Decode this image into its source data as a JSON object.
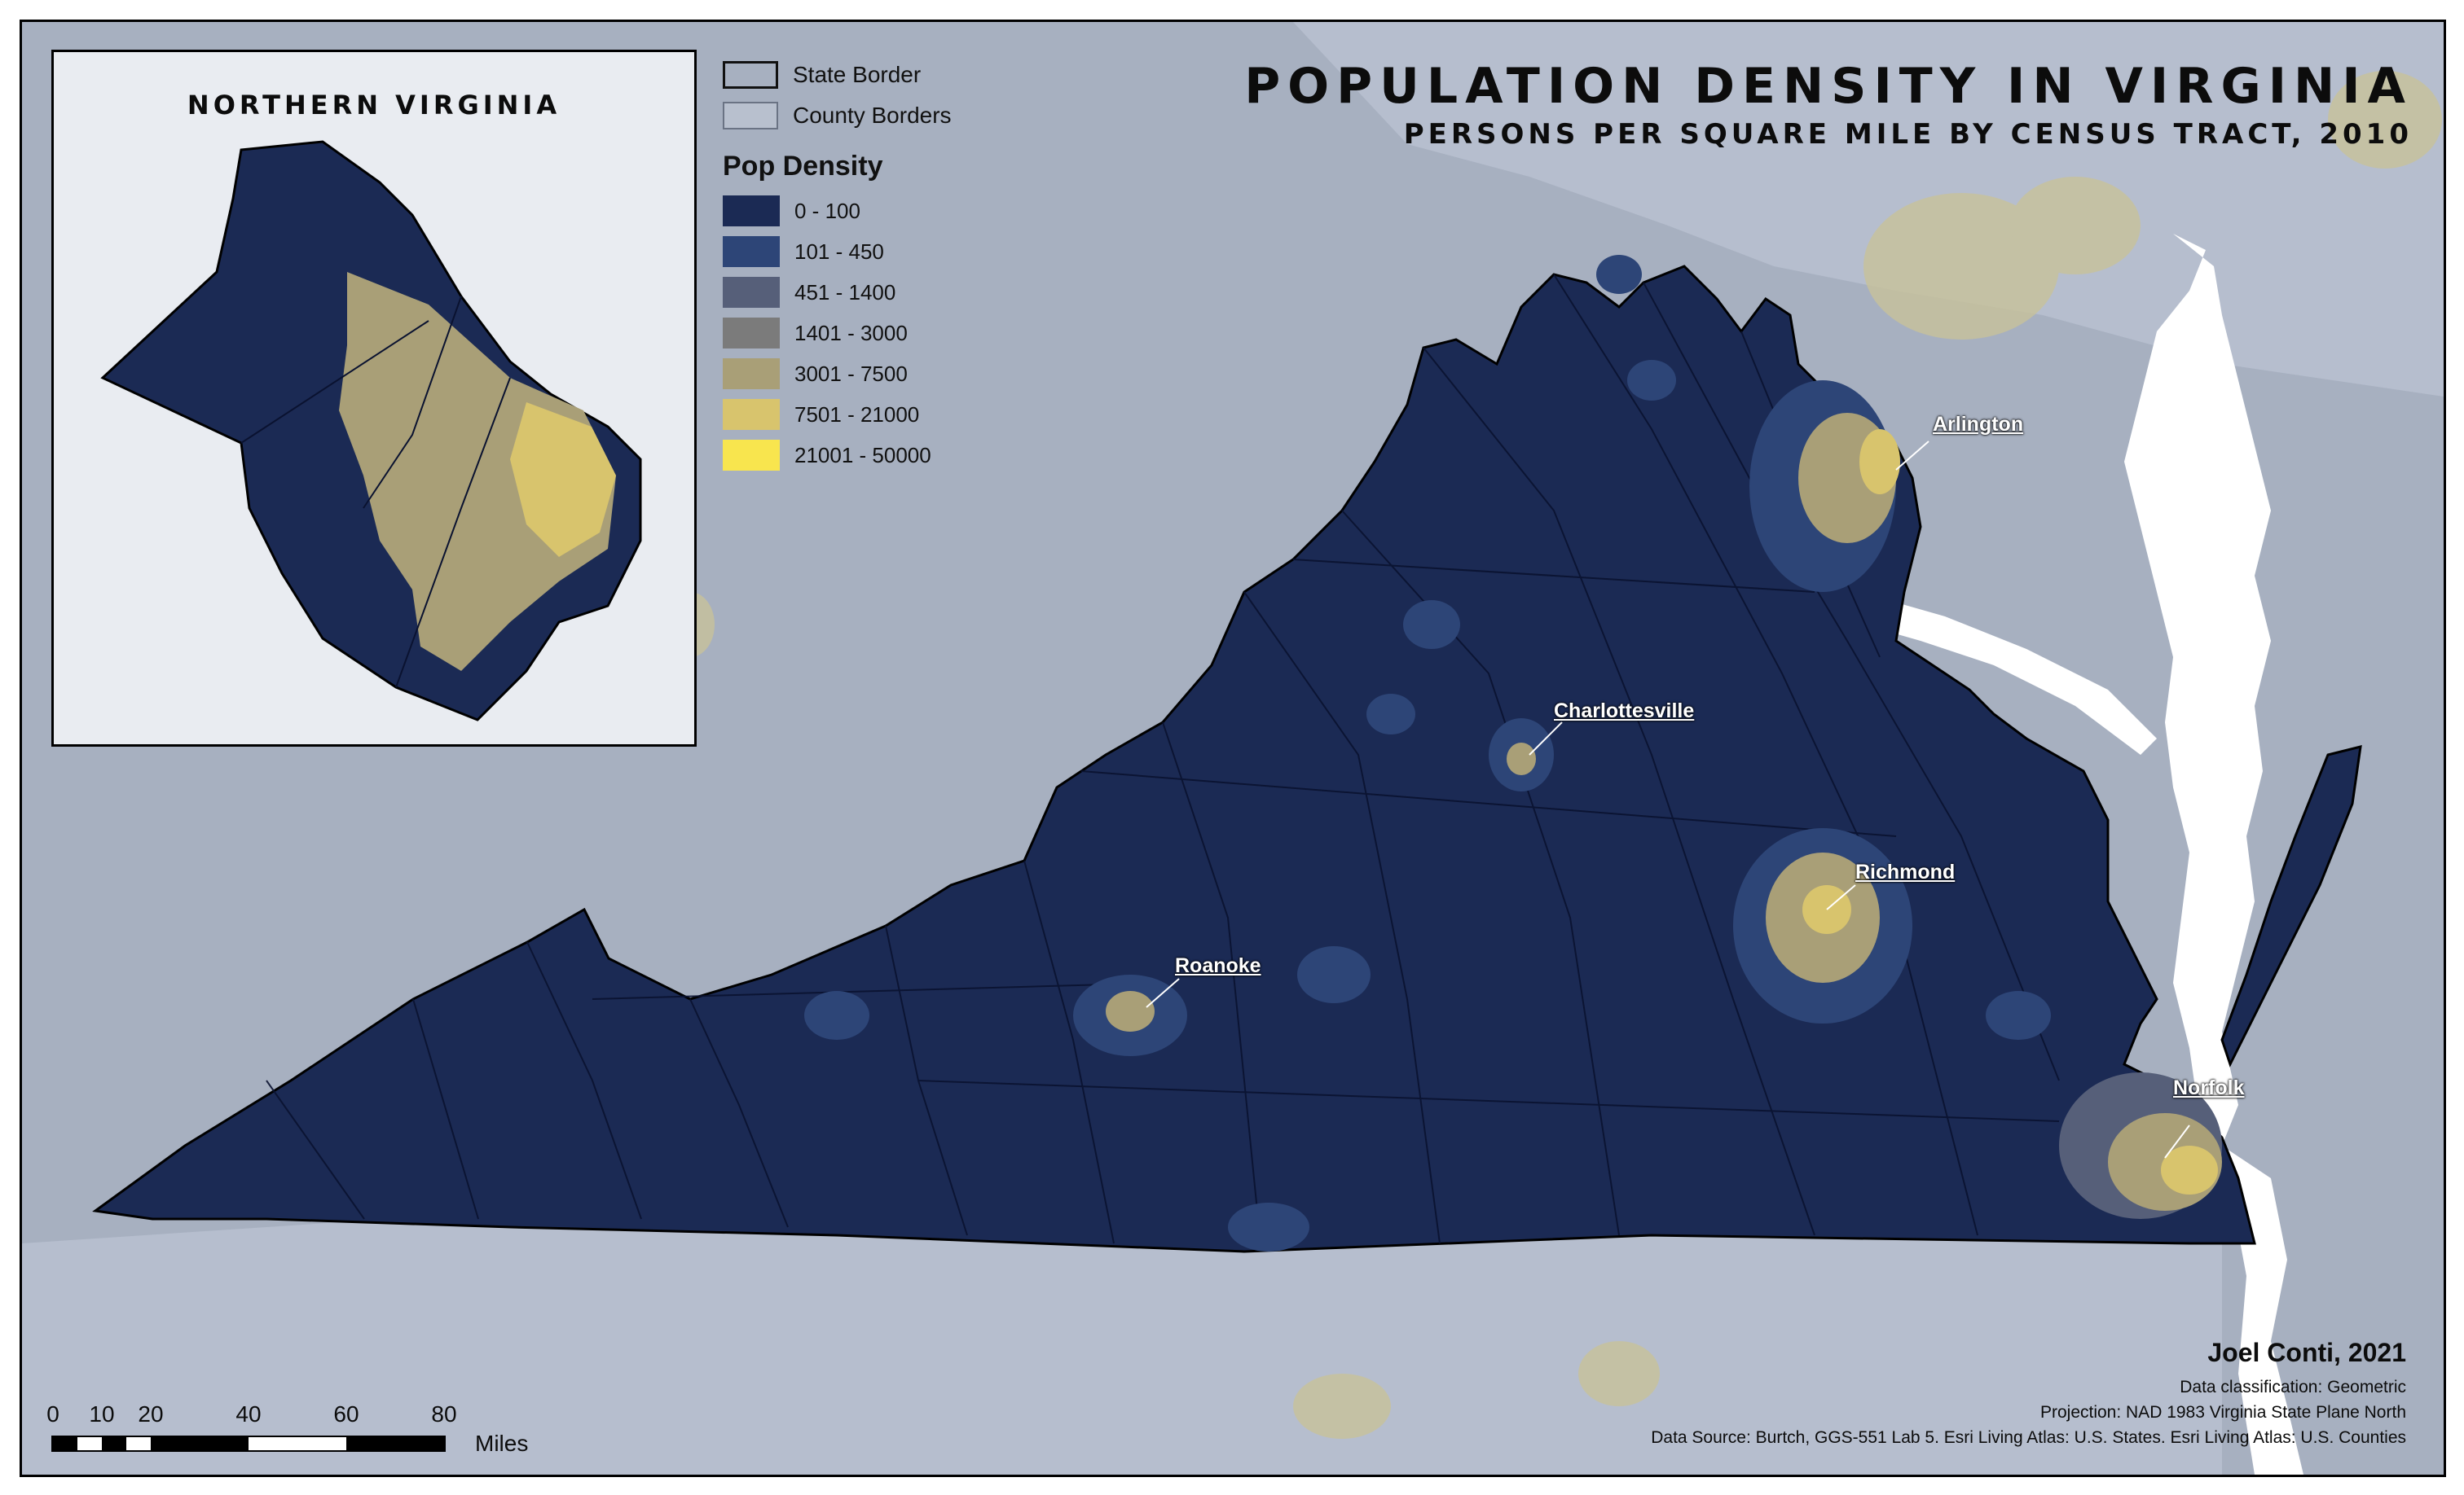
{
  "map": {
    "title": "POPULATION DENSITY IN VIRGINIA",
    "subtitle": "PERSONS PER SQUARE MILE BY CENSUS TRACT, 2010"
  },
  "inset": {
    "title": "NORTHERN VIRGINIA"
  },
  "legend": {
    "state_border": "State Border",
    "county_borders": "County Borders",
    "title": "Pop Density",
    "classes": [
      {
        "label": "0 - 100",
        "color": "#1b2a54"
      },
      {
        "label": "101 - 450",
        "color": "#2d4577"
      },
      {
        "label": "451 - 1400",
        "color": "#565f79"
      },
      {
        "label": "1401 - 3000",
        "color": "#7b7b7b"
      },
      {
        "label": "3001 - 7500",
        "color": "#a99f77"
      },
      {
        "label": "7501 - 21000",
        "color": "#d8c46d"
      },
      {
        "label": "21001 - 50000",
        "color": "#f8e54e"
      }
    ]
  },
  "cities": [
    {
      "name": "Arlington"
    },
    {
      "name": "Charlottesville"
    },
    {
      "name": "Richmond"
    },
    {
      "name": "Roanoke"
    },
    {
      "name": "Norfolk"
    }
  ],
  "credits": {
    "author": "Joel Conti, 2021",
    "classification": "Data classification: Geometric",
    "projection": "Projection: NAD 1983 Virginia State Plane North",
    "source": "Data Source: Burtch, GGS-551 Lab 5. Esri Living Atlas: U.S. States. Esri Living Atlas: U.S. Counties"
  },
  "scale": {
    "ticks": [
      "0",
      "10",
      "20",
      "40",
      "60",
      "80"
    ],
    "unit": "Miles"
  },
  "colors": {
    "background_land": "#a7b0c0",
    "water": "#ffffff",
    "state_fill": "#1b2a54"
  }
}
